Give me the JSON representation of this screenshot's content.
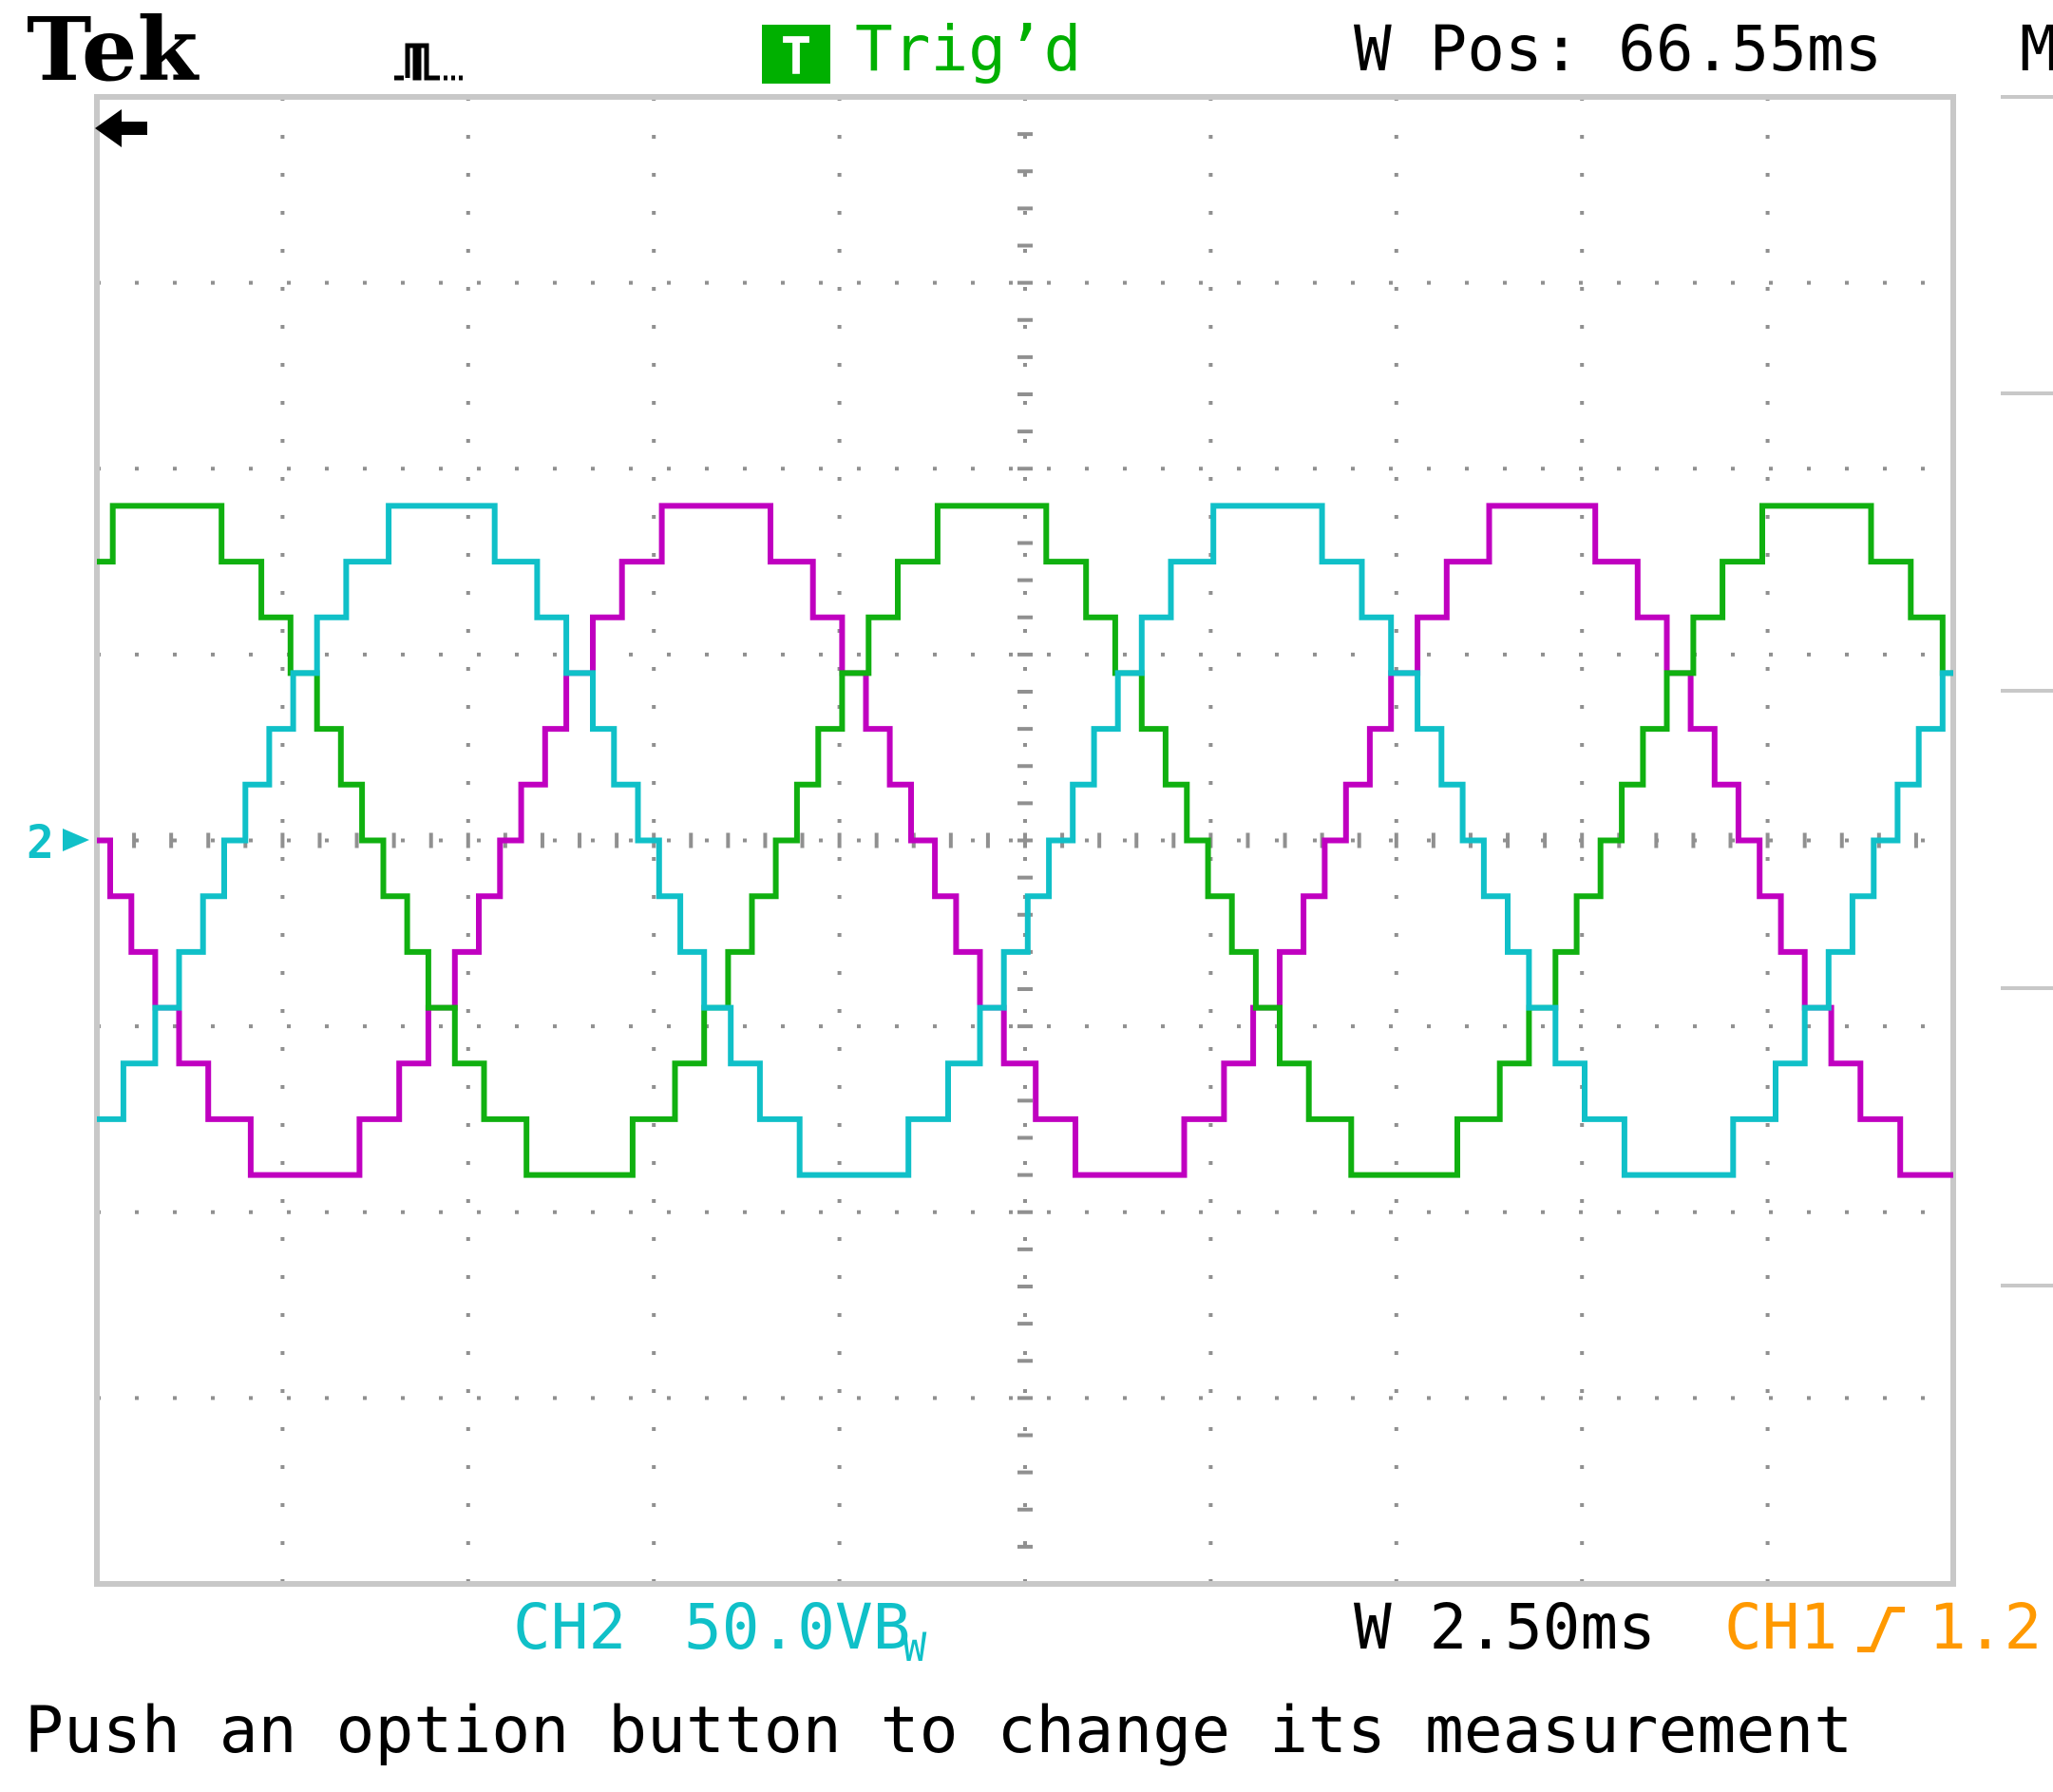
{
  "header": {
    "brand": "Tek",
    "acq_icon": "acquisition-run-icon",
    "trigger_badge": "T",
    "trigger_status": "Trig’d",
    "position": "W Pos: 66.55ms",
    "menu_cut": "M"
  },
  "footer": {
    "ch2_label": "CH2",
    "ch2_scale": "50.0VB",
    "ch2_bw": "W",
    "timebase": "W 2.50ms",
    "ch1_label": "CH1",
    "ch1_trigger_icon": "rising-edge-icon",
    "ch1_level": "1.2",
    "message": "Push an option button to change its measurement"
  },
  "markers": {
    "ground_marker": "2",
    "trigger_pos_icon": "trigger-position-arrow-icon"
  },
  "colors": {
    "ch_magenta": "#c000c0",
    "ch_green": "#10b010",
    "ch_cyan": "#10c0c8",
    "trig_green": "#00b000",
    "ch1_orange": "#ff9900",
    "grid": "#909090"
  },
  "chart_data": {
    "type": "line",
    "xlim": [
      0,
      10
    ],
    "ylim": [
      -4,
      4
    ],
    "series": [
      {
        "color": "#c000c0",
        "amplitude": 1.8,
        "phase_deg": 90
      },
      {
        "color": "#10b010",
        "amplitude": 1.8,
        "phase_deg": -30
      },
      {
        "color": "#10c0c8",
        "amplitude": 1.8,
        "phase_deg": 210
      }
    ],
    "cycles": 2.25,
    "levels_per_step": 0.3
  }
}
